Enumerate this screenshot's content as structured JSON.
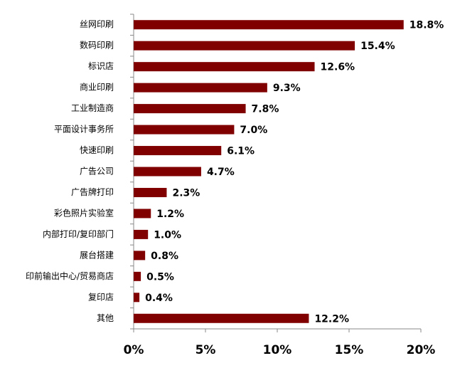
{
  "chart_data": {
    "type": "bar",
    "categories": [
      "丝网印刷",
      "数码印刷",
      "标识店",
      "商业印刷",
      "工业制造商",
      "平面设计事务所",
      "快速印刷",
      "广告公司",
      "广告牌打印",
      "彩色照片实验室",
      "内部打印/复印部门",
      "展台搭建",
      "印前输出中心/贸易商店",
      "复印店",
      "其他"
    ],
    "values": [
      18.8,
      15.4,
      12.6,
      9.3,
      7.8,
      7.0,
      6.1,
      4.7,
      2.3,
      1.2,
      1.0,
      0.8,
      0.5,
      0.4,
      12.2
    ],
    "value_labels": [
      "18.8%",
      "15.4%",
      "12.6%",
      "9.3%",
      "7.8%",
      "7.0%",
      "6.1%",
      "4.7%",
      "2.3%",
      "1.2%",
      "1.0%",
      "0.8%",
      "0.5%",
      "0.4%",
      "12.2%"
    ],
    "color": "#800000",
    "xlim": [
      0,
      20
    ],
    "xticks": [
      {
        "value": 0,
        "label": "0%"
      },
      {
        "value": 5,
        "label": "5%"
      },
      {
        "value": 10,
        "label": "10%"
      },
      {
        "value": 15,
        "label": "15%"
      },
      {
        "value": 20,
        "label": "20%"
      }
    ]
  }
}
